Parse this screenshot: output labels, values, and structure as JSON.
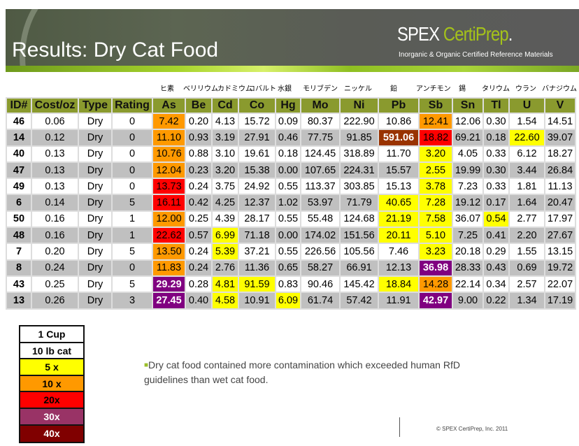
{
  "header": {
    "title": "Results:  Dry Cat Food",
    "logo_main": "SPEX ",
    "logo_accent": "CertiPrep",
    "logo_reg": ".",
    "tagline": "Inorganic & Organic Certified Reference Materials"
  },
  "japanese_labels": [
    "ヒ素",
    "ベリリウム",
    "カドミウム",
    "コバルト",
    "水銀",
    "モリブデン",
    "ニッケル",
    "鉛",
    "アンチモン",
    "錫",
    "タリウム",
    "ウラン",
    "バナジウム"
  ],
  "table": {
    "columns": [
      "ID#",
      "Cost/oz",
      "Type",
      "Rating",
      "As",
      "Be",
      "Cd",
      "Co",
      "Hg",
      "Mo",
      "Ni",
      "Pb",
      "Sb",
      "Sn",
      "Tl",
      "U",
      "V"
    ],
    "rows": [
      {
        "cells": [
          "46",
          "0.06",
          "Dry",
          "0",
          "7.42",
          "0.20",
          "4.13",
          "15.72",
          "0.09",
          "80.37",
          "222.90",
          "10.86",
          "12.41",
          "12.06",
          "0.30",
          "1.54",
          "14.51"
        ],
        "levels": {
          "4": "10x",
          "12": "10x"
        }
      },
      {
        "cells": [
          "14",
          "0.12",
          "Dry",
          "0",
          "11.10",
          "0.93",
          "3.19",
          "27.91",
          "0.46",
          "77.75",
          "91.85",
          "591.06",
          "18.82",
          "69.21",
          "0.18",
          "22.60",
          "39.07"
        ],
        "levels": {
          "4": "10x",
          "11": "40x",
          "12": "20x",
          "15": "5x"
        }
      },
      {
        "cells": [
          "40",
          "0.13",
          "Dry",
          "0",
          "10.76",
          "0.88",
          "3.10",
          "19.61",
          "0.18",
          "124.45",
          "318.89",
          "11.70",
          "3.20",
          "4.05",
          "0.33",
          "6.12",
          "18.27"
        ],
        "levels": {
          "4": "10x",
          "12": "5x"
        }
      },
      {
        "cells": [
          "47",
          "0.13",
          "Dry",
          "0",
          "12.04",
          "0.23",
          "3.20",
          "15.38",
          "0.00",
          "107.65",
          "224.31",
          "15.57",
          "2.55",
          "19.99",
          "0.30",
          "3.44",
          "26.84"
        ],
        "levels": {
          "4": "10x",
          "12": "5x"
        }
      },
      {
        "cells": [
          "49",
          "0.13",
          "Dry",
          "0",
          "13.73",
          "0.24",
          "3.75",
          "24.92",
          "0.55",
          "113.37",
          "303.85",
          "15.13",
          "3.78",
          "7.23",
          "0.33",
          "1.81",
          "11.13"
        ],
        "levels": {
          "4": "20x",
          "12": "5x"
        }
      },
      {
        "cells": [
          "6",
          "0.14",
          "Dry",
          "5",
          "16.11",
          "0.42",
          "4.25",
          "12.37",
          "1.02",
          "53.97",
          "71.79",
          "40.65",
          "7.28",
          "19.12",
          "0.17",
          "1.64",
          "20.47"
        ],
        "levels": {
          "4": "20x",
          "11": "5x",
          "12": "5x"
        }
      },
      {
        "cells": [
          "50",
          "0.16",
          "Dry",
          "1",
          "12.00",
          "0.25",
          "4.39",
          "28.17",
          "0.55",
          "55.48",
          "124.68",
          "21.19",
          "7.58",
          "36.07",
          "0.54",
          "2.77",
          "17.97"
        ],
        "levels": {
          "4": "10x",
          "11": "5x",
          "12": "5x",
          "14": "5x"
        }
      },
      {
        "cells": [
          "48",
          "0.16",
          "Dry",
          "1",
          "22.62",
          "0.57",
          "6.99",
          "71.18",
          "0.00",
          "174.02",
          "151.56",
          "20.11",
          "5.10",
          "7.25",
          "0.41",
          "2.20",
          "27.67"
        ],
        "levels": {
          "4": "20x",
          "6": "5x",
          "11": "5x",
          "12": "5x"
        }
      },
      {
        "cells": [
          "7",
          "0.20",
          "Dry",
          "5",
          "13.50",
          "0.24",
          "5.39",
          "37.21",
          "0.55",
          "226.56",
          "105.56",
          "7.46",
          "3.23",
          "20.18",
          "0.29",
          "1.55",
          "13.15"
        ],
        "levels": {
          "4": "10x",
          "6": "5x",
          "12": "5x"
        }
      },
      {
        "cells": [
          "8",
          "0.24",
          "Dry",
          "0",
          "11.83",
          "0.24",
          "2.76",
          "11.36",
          "0.65",
          "58.27",
          "66.91",
          "12.13",
          "36.98",
          "28.33",
          "0.43",
          "0.69",
          "19.72"
        ],
        "levels": {
          "4": "10x",
          "12": "30x"
        }
      },
      {
        "cells": [
          "43",
          "0.25",
          "Dry",
          "5",
          "29.29",
          "0.28",
          "4.81",
          "91.59",
          "0.83",
          "90.46",
          "145.42",
          "18.84",
          "14.28",
          "22.14",
          "0.34",
          "2.57",
          "22.07"
        ],
        "levels": {
          "4": "30x",
          "6": "5x",
          "7": "5x",
          "11": "5x",
          "12": "10x"
        }
      },
      {
        "cells": [
          "13",
          "0.26",
          "Dry",
          "3",
          "27.45",
          "0.40",
          "4.58",
          "10.91",
          "6.09",
          "61.74",
          "57.42",
          "11.91",
          "42.97",
          "9.00",
          "0.22",
          "1.34",
          "17.19"
        ],
        "levels": {
          "4": "30x",
          "6": "5x",
          "8": "5x",
          "12": "30x"
        }
      }
    ]
  },
  "legend": [
    "1 Cup",
    "10 lb cat",
    "5 x",
    "10 x",
    "20x",
    "30x",
    "40x"
  ],
  "legend_colors": [
    "#ffffff",
    "#ffffff",
    "#ffff00",
    "#ff9900",
    "#ff0000",
    "#993366",
    "#800000"
  ],
  "note": "Dry cat food contained more contamination which exceeded human RfD guidelines than wet cat food.",
  "copyright": "© SPEX CertiPrep, Inc. 2011"
}
